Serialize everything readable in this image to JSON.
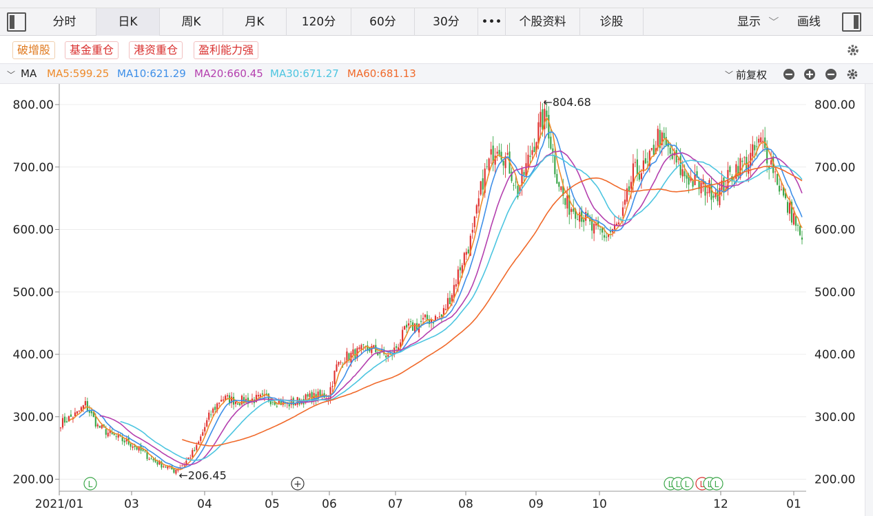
{
  "tabs": [
    "分时",
    "日K",
    "周K",
    "月K",
    "120分",
    "60分",
    "30分",
    "•••",
    "个股资料",
    "诊股"
  ],
  "active_tab": "日K",
  "toolbar": {
    "display_label": "显示",
    "draw_label": "画线"
  },
  "tags": [
    "破增股",
    "基金重仓",
    "港资重仓",
    "盈利能力强"
  ],
  "ma_bar": {
    "label": "MA",
    "ma5": "MA5:599.25",
    "ma10": "MA10:621.29",
    "ma20": "MA20:660.45",
    "ma30": "MA30:671.27",
    "ma60": "MA60:681.13",
    "adjust": "前复权"
  },
  "colors": {
    "up": "#e0312f",
    "down": "#3aa648",
    "ma5": "#ee8a2a",
    "ma10": "#3e8fe8",
    "ma20": "#b43fae",
    "ma30": "#4cc5e0",
    "ma60": "#f0692a"
  },
  "chart_data": {
    "type": "candlestick",
    "y_ticks": [
      "800.00",
      "700.00",
      "600.00",
      "500.00",
      "400.00",
      "300.00",
      "200.00"
    ],
    "ylim": [
      195,
      815
    ],
    "x_ticks": [
      "2021/01",
      "03",
      "04",
      "05",
      "06",
      "07",
      "08",
      "09",
      "10",
      "12",
      "01"
    ],
    "annotations": {
      "high": "←804.68",
      "low": "←206.45"
    },
    "markers": [
      "L",
      "L",
      "L",
      "L",
      "L",
      "L",
      "L",
      "+"
    ],
    "close_anchors": [
      [
        0,
        290
      ],
      [
        8,
        305
      ],
      [
        12,
        320
      ],
      [
        18,
        285
      ],
      [
        25,
        270
      ],
      [
        35,
        255
      ],
      [
        45,
        230
      ],
      [
        55,
        214
      ],
      [
        60,
        225
      ],
      [
        66,
        250
      ],
      [
        72,
        300
      ],
      [
        78,
        330
      ],
      [
        86,
        325
      ],
      [
        100,
        330
      ],
      [
        110,
        320
      ],
      [
        120,
        330
      ],
      [
        130,
        335
      ],
      [
        134,
        380
      ],
      [
        138,
        395
      ],
      [
        150,
        410
      ],
      [
        160,
        395
      ],
      [
        168,
        440
      ],
      [
        178,
        455
      ],
      [
        185,
        460
      ],
      [
        190,
        500
      ],
      [
        195,
        550
      ],
      [
        200,
        590
      ],
      [
        205,
        680
      ],
      [
        212,
        740
      ],
      [
        218,
        700
      ],
      [
        222,
        660
      ],
      [
        228,
        720
      ],
      [
        233,
        770
      ],
      [
        236,
        780
      ],
      [
        240,
        700
      ],
      [
        245,
        640
      ],
      [
        252,
        630
      ],
      [
        258,
        600
      ],
      [
        265,
        590
      ],
      [
        272,
        610
      ],
      [
        278,
        690
      ],
      [
        285,
        700
      ],
      [
        290,
        750
      ],
      [
        296,
        720
      ],
      [
        302,
        690
      ],
      [
        310,
        670
      ],
      [
        320,
        660
      ],
      [
        328,
        700
      ],
      [
        334,
        710
      ],
      [
        340,
        740
      ],
      [
        346,
        700
      ],
      [
        352,
        640
      ],
      [
        356,
        620
      ],
      [
        360,
        575
      ]
    ]
  }
}
